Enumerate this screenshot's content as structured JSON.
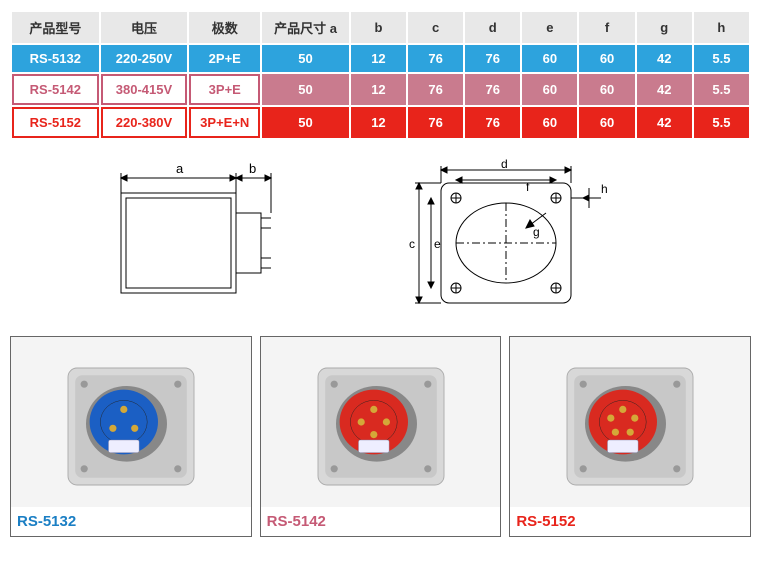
{
  "table": {
    "headers": [
      "产品型号",
      "电压",
      "极数",
      "产品尺寸 a",
      "b",
      "c",
      "d",
      "e",
      "f",
      "g",
      "h"
    ],
    "rows": [
      {
        "model": "RS-5132",
        "voltage": "220-250V",
        "poles": "2P+E",
        "a": "50",
        "b": "12",
        "c": "76",
        "d": "76",
        "e": "60",
        "f": "60",
        "g": "42",
        "h": "5.5",
        "color": "blue"
      },
      {
        "model": "RS-5142",
        "voltage": "380-415V",
        "poles": "3P+E",
        "a": "50",
        "b": "12",
        "c": "76",
        "d": "76",
        "e": "60",
        "f": "60",
        "g": "42",
        "h": "5.5",
        "color": "pink"
      },
      {
        "model": "RS-5152",
        "voltage": "220-380V",
        "poles": "3P+E+N",
        "a": "50",
        "b": "12",
        "c": "76",
        "d": "76",
        "e": "60",
        "f": "60",
        "g": "42",
        "h": "5.5",
        "color": "red"
      }
    ],
    "header_bg": "#e8e8e8",
    "header_fg": "#333333",
    "colors": {
      "blue": "#2da3dd",
      "pink": "#c97b8e",
      "pink_outline": "#c55a75",
      "red": "#e8241b"
    },
    "col_widths_pct": [
      11,
      11,
      9,
      11,
      7,
      7,
      7,
      7,
      7,
      7,
      7
    ]
  },
  "diagrams": {
    "left": {
      "labels": {
        "a": "a",
        "b": "b"
      }
    },
    "right": {
      "labels": {
        "c": "c",
        "d": "d",
        "e": "e",
        "f": "f",
        "g": "g",
        "h": "h"
      }
    },
    "stroke": "#000000",
    "stroke_width": 1
  },
  "products": [
    {
      "label": "RS-5132",
      "label_color": "blue",
      "plug_color": "#1b5fc4",
      "pins": 3
    },
    {
      "label": "RS-5142",
      "label_color": "pink",
      "plug_color": "#d92a20",
      "pins": 4
    },
    {
      "label": "RS-5152",
      "label_color": "red",
      "plug_color": "#d92a20",
      "pins": 5
    }
  ]
}
